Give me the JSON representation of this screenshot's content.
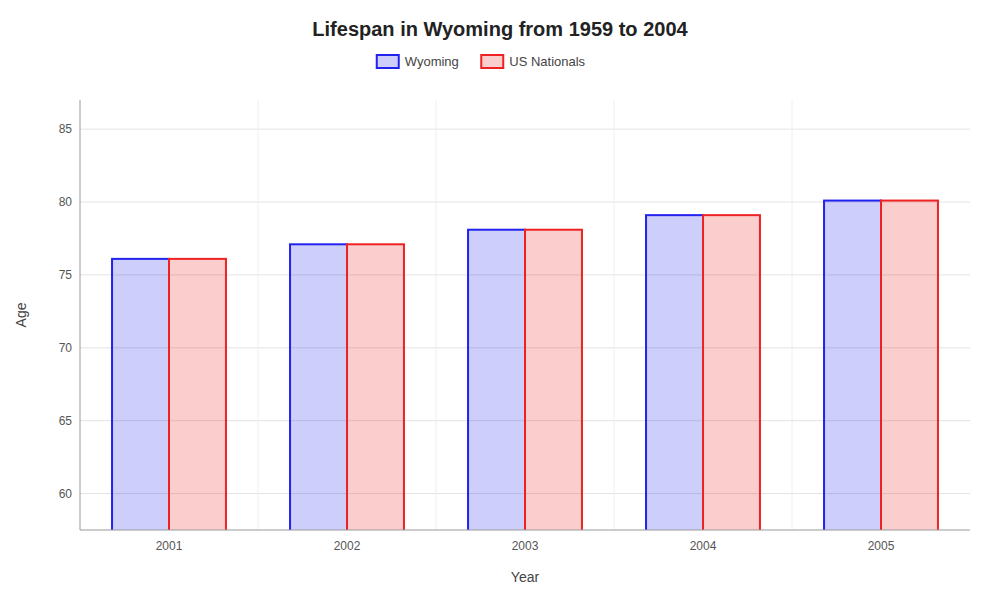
{
  "chart_data": {
    "type": "bar",
    "title": "Lifespan in Wyoming from 1959 to 2004",
    "xlabel": "Year",
    "ylabel": "Age",
    "categories": [
      "2001",
      "2002",
      "2003",
      "2004",
      "2005"
    ],
    "series": [
      {
        "name": "Wyoming",
        "color": "#2222ee",
        "values": [
          76.1,
          77.1,
          78.1,
          79.1,
          80.1
        ]
      },
      {
        "name": "US Nationals",
        "color": "#ee2222",
        "values": [
          76.1,
          77.1,
          78.1,
          79.1,
          80.1
        ]
      }
    ],
    "ylim": [
      57.5,
      87
    ],
    "yticks": [
      60,
      65,
      70,
      75,
      80,
      85
    ],
    "grid": true,
    "legend": "top"
  }
}
